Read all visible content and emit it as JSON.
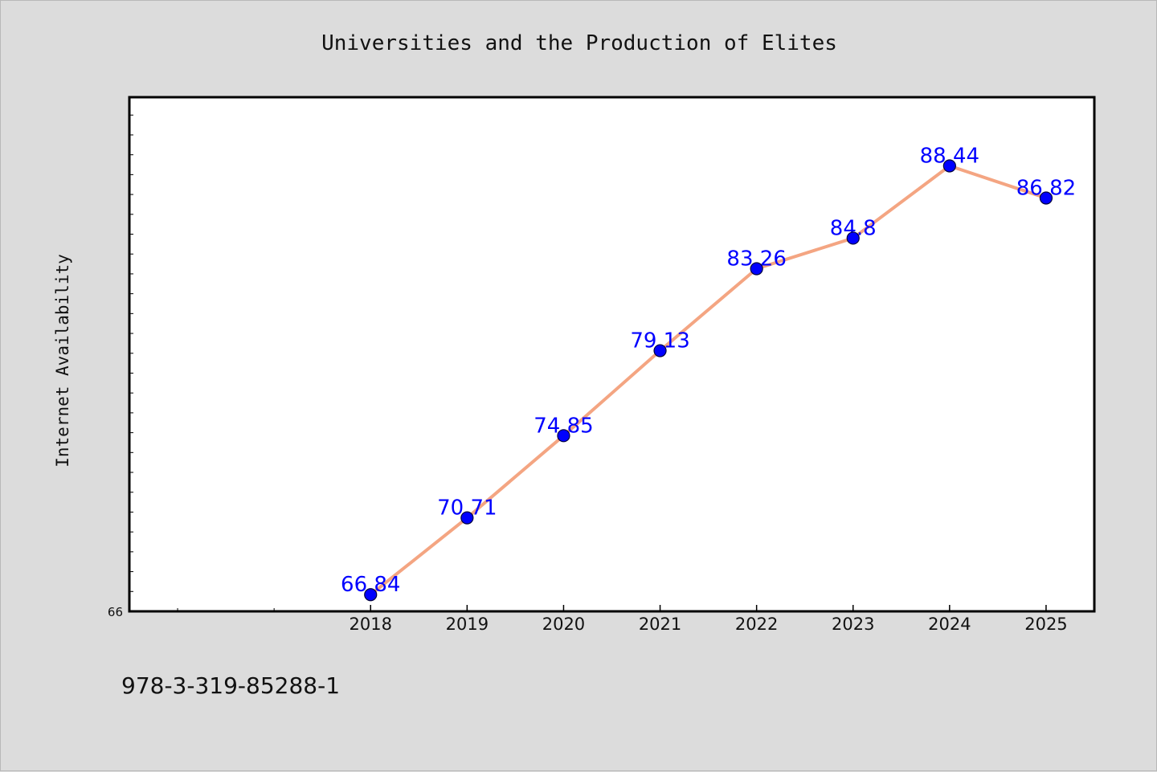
{
  "chart_data": {
    "type": "line",
    "title": "Universities and the Production of Elites",
    "ylabel": "Internet Availability",
    "xlabel": "",
    "categories": [
      "2018",
      "2019",
      "2020",
      "2021",
      "2022",
      "2023",
      "2024",
      "2025"
    ],
    "values": [
      66.84,
      70.71,
      74.85,
      79.13,
      83.26,
      84.8,
      88.44,
      86.82
    ],
    "data_labels": [
      "66.84",
      "70.71",
      "74.85",
      "79.13",
      "83.26",
      "84.8",
      "88.44",
      "86.82"
    ],
    "y_tick_labels": [
      {
        "value": 66,
        "label": "66"
      }
    ],
    "ylim": [
      66,
      91.9
    ],
    "x_slots": 10,
    "x_slot_offset": 2,
    "grid": false,
    "legend": "none",
    "colors": {
      "line": "#f4a582",
      "marker": "#0000ff",
      "marker_edge": "#00003a",
      "data_label": "#0000ff",
      "plot_bg": "#ffffff",
      "page_bg": "#dcdcdc"
    }
  },
  "footer": {
    "isbn": "978-3-319-85288-1"
  }
}
